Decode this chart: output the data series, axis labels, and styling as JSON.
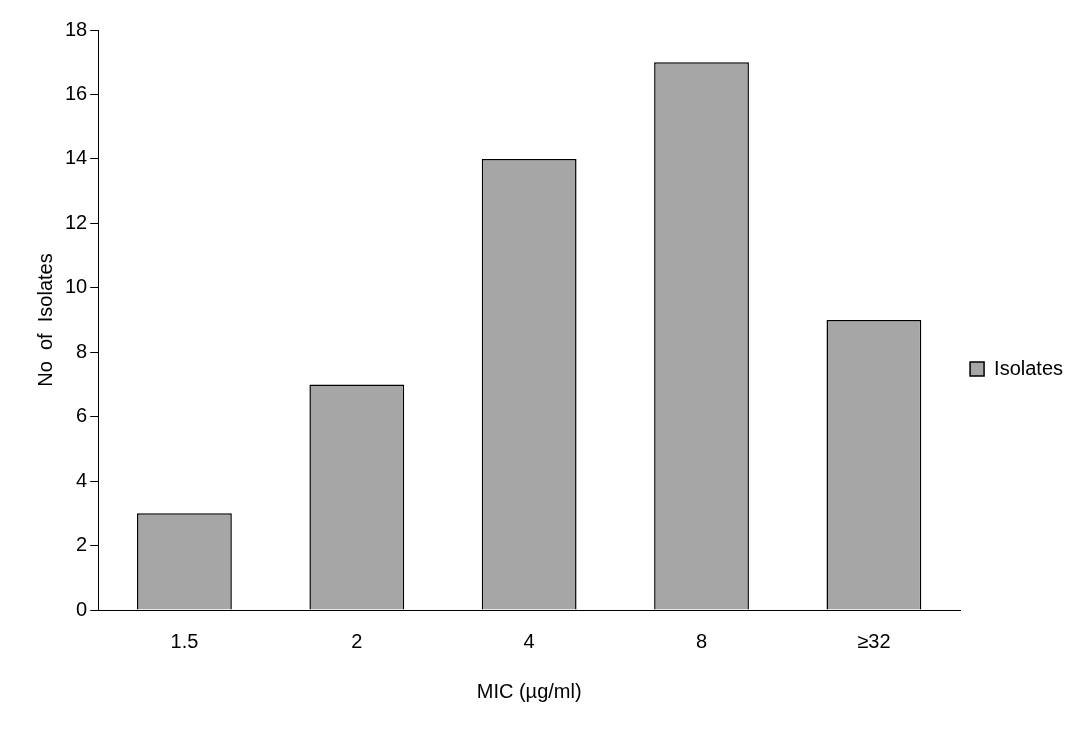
{
  "chart_data": {
    "type": "bar",
    "xlabel": "MIC (µg/ml)",
    "ylabel": "No  of  Isolates",
    "categories": [
      "1.5",
      "2",
      "4",
      "8",
      "≥32"
    ],
    "series": [
      {
        "name": "Isolates",
        "color": "#a6a6a6",
        "values": [
          3,
          7,
          14,
          17,
          9
        ]
      }
    ],
    "ylim": [
      0,
      18
    ],
    "yticks": [
      0,
      2,
      4,
      6,
      8,
      10,
      12,
      14,
      16,
      18
    ],
    "grid": false,
    "legend": "right"
  }
}
